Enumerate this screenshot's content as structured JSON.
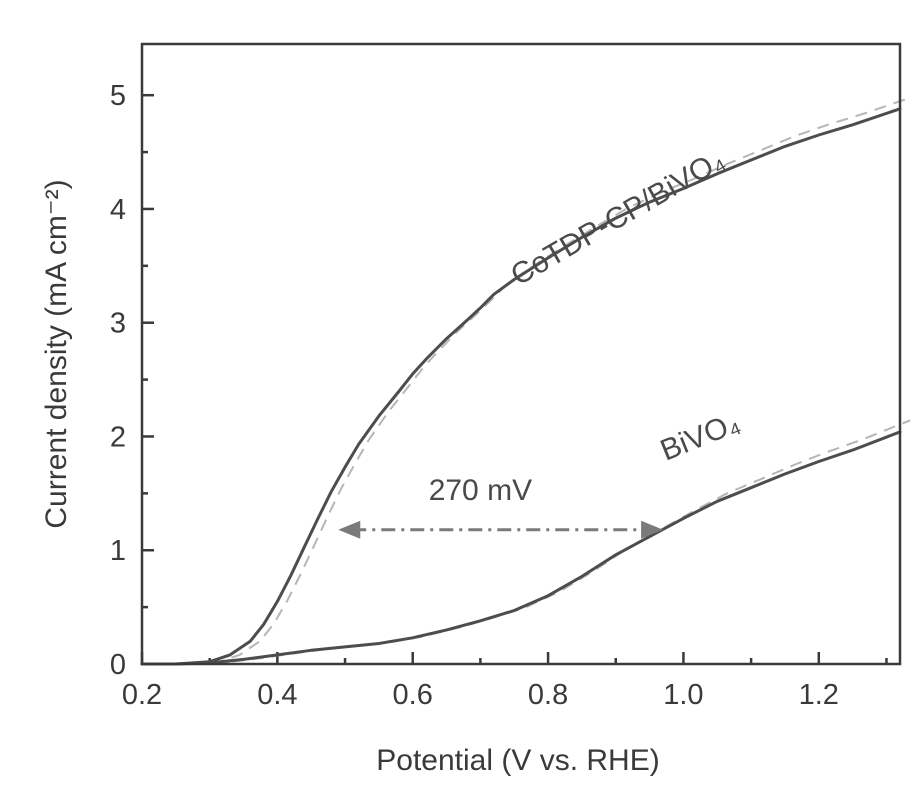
{
  "chart_data": {
    "type": "line",
    "title": "",
    "xlabel": "Potential (V vs. RHE)",
    "ylabel": "Current density (mA cm⁻²)",
    "xlim": [
      0.2,
      1.32
    ],
    "ylim": [
      0,
      5.45
    ],
    "xticks": [
      "0.2",
      "0.4",
      "0.6",
      "0.8",
      "1.0",
      "1.2"
    ],
    "yticks": [
      "0",
      "1",
      "2",
      "3",
      "4",
      "5"
    ],
    "series": [
      {
        "name": "CoTDP-CP/BiVO₄",
        "x": [
          0.2,
          0.25,
          0.3,
          0.33,
          0.36,
          0.38,
          0.4,
          0.42,
          0.44,
          0.46,
          0.48,
          0.5,
          0.52,
          0.55,
          0.58,
          0.6,
          0.62,
          0.65,
          0.68,
          0.7,
          0.72,
          0.75,
          0.8,
          0.85,
          0.9,
          0.95,
          1.0,
          1.05,
          1.1,
          1.15,
          1.2,
          1.25,
          1.32
        ],
        "y": [
          0.0,
          0.0,
          0.02,
          0.08,
          0.2,
          0.35,
          0.55,
          0.78,
          1.03,
          1.28,
          1.52,
          1.73,
          1.93,
          2.18,
          2.4,
          2.55,
          2.68,
          2.86,
          3.02,
          3.13,
          3.25,
          3.38,
          3.57,
          3.75,
          3.92,
          4.06,
          4.18,
          4.31,
          4.43,
          4.55,
          4.65,
          4.74,
          4.88
        ]
      },
      {
        "name": "BiVO₄",
        "x": [
          0.2,
          0.25,
          0.3,
          0.35,
          0.4,
          0.45,
          0.5,
          0.55,
          0.6,
          0.65,
          0.7,
          0.75,
          0.8,
          0.85,
          0.9,
          0.95,
          1.0,
          1.05,
          1.1,
          1.15,
          1.2,
          1.25,
          1.32
        ],
        "y": [
          0.0,
          0.0,
          0.01,
          0.04,
          0.08,
          0.12,
          0.15,
          0.18,
          0.23,
          0.3,
          0.38,
          0.47,
          0.6,
          0.77,
          0.96,
          1.12,
          1.28,
          1.43,
          1.55,
          1.67,
          1.78,
          1.88,
          2.04
        ]
      }
    ],
    "annotations": [
      {
        "text": "CoTDP-CP/BiVO₄"
      },
      {
        "text": "BiVO₄"
      },
      {
        "text": "270 mV",
        "arrow_from": [
          0.49,
          1.18
        ],
        "arrow_to": [
          0.97,
          1.18
        ]
      }
    ]
  }
}
